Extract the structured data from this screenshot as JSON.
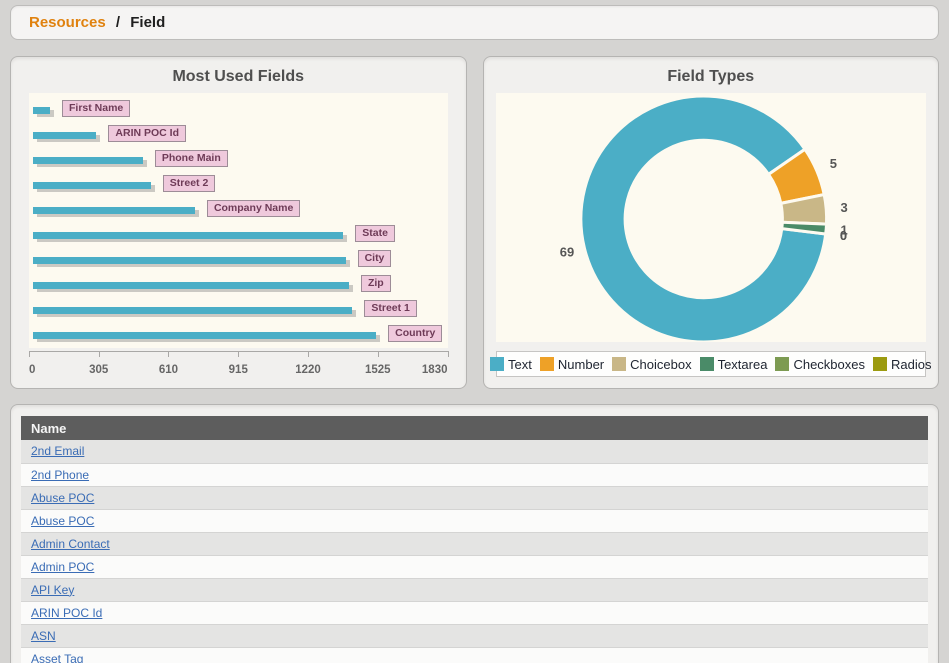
{
  "breadcrumb": {
    "parent": "Resources",
    "separator": "/",
    "current": "Field"
  },
  "chart_data": [
    {
      "type": "bar",
      "orientation": "horizontal",
      "title": "Most Used Fields",
      "categories": [
        "First Name",
        "ARIN POC Id",
        "Phone Main",
        "Street 2",
        "Company Name",
        "State",
        "City",
        "Zip",
        "Street 1",
        "Country"
      ],
      "values": [
        75,
        280,
        485,
        520,
        715,
        1370,
        1380,
        1395,
        1410,
        1515
      ],
      "xlabel": "",
      "ylabel": "",
      "xlim": [
        0,
        1830
      ],
      "xticks": [
        0,
        305,
        610,
        915,
        1220,
        1525,
        1830
      ],
      "grid": false,
      "bar_color": "#4BAEC6",
      "bar_shadow_color": "#CBC9C3",
      "label_bg": "#EFC9DC",
      "label_border": "#9D8C97",
      "label_text_color": "#6E3B57",
      "plot_bg": "#FDFAF0"
    },
    {
      "type": "donut",
      "title": "Field Types",
      "series": [
        {
          "name": "Text",
          "value": 69,
          "color": "#4BAEC6"
        },
        {
          "name": "Number",
          "value": 5,
          "color": "#EEA127"
        },
        {
          "name": "Choicebox",
          "value": 3,
          "color": "#C9B787"
        },
        {
          "name": "Textarea",
          "value": 1,
          "color": "#4A8B68"
        },
        {
          "name": "Checkboxes",
          "value": 0,
          "color": "#7D9B52"
        },
        {
          "name": "Radios",
          "value": 0,
          "color": "#9C9B10"
        }
      ],
      "start_angle_deg": 97,
      "inner_radius_ratio": 0.64,
      "legend_position": "bottom",
      "value_label_color": "#555555",
      "plot_bg": "#FDFAF0"
    }
  ],
  "table": {
    "columns": [
      "Name"
    ],
    "rows": [
      "2nd Email",
      "2nd Phone",
      "Abuse POC",
      "Abuse POC",
      "Admin Contact",
      "Admin POC",
      "API Key",
      "ARIN POC Id",
      "ASN",
      "Asset Tag"
    ]
  },
  "colors": {
    "page_bg": "#D5D4D2",
    "panel_bg": "#F1F0EE",
    "panel_border": "#B5B4B2",
    "accent_orange": "#E0820F",
    "link_blue": "#3A6CB5",
    "table_header_bg": "#5D5D5D",
    "plot_bg": "#FDFAF0"
  }
}
